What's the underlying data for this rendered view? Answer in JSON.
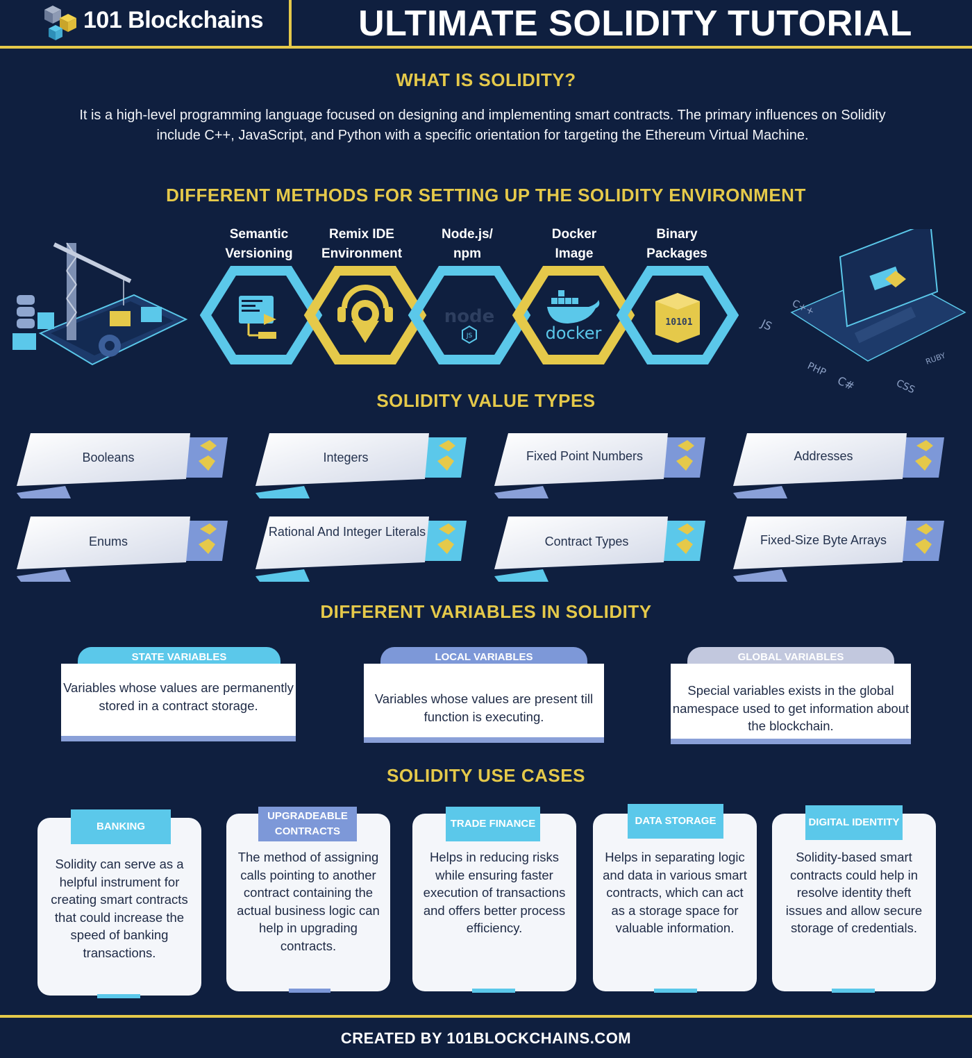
{
  "header": {
    "brand": "101 Blockchains",
    "title": "ULTIMATE SOLIDITY TUTORIAL"
  },
  "what_is": {
    "heading": "WHAT IS SOLIDITY?",
    "body": "It is a high-level programming language focused on designing and implementing smart contracts. The primary influences on Solidity include C++, JavaScript, and Python with a specific orientation for targeting the Ethereum Virtual Machine."
  },
  "methods": {
    "heading": "DIFFERENT METHODS FOR SETTING UP THE SOLIDITY ENVIRONMENT",
    "items": [
      {
        "line1": "Semantic",
        "line2": "Versioning"
      },
      {
        "line1": "Remix IDE",
        "line2": "Environment"
      },
      {
        "line1": "Node.js/",
        "line2": "npm"
      },
      {
        "line1": "Docker",
        "line2": "Image"
      },
      {
        "line1": "Binary",
        "line2": "Packages"
      }
    ],
    "icon_text": {
      "node": "node",
      "docker": "docker",
      "binary": "10101"
    }
  },
  "value_types": {
    "heading": "SOLIDITY VALUE TYPES",
    "items": [
      "Booleans",
      "Integers",
      "Fixed Point Numbers",
      "Addresses",
      "Enums",
      "Rational And Integer Literals",
      "Contract Types",
      "Fixed-Size Byte Arrays"
    ]
  },
  "variables": {
    "heading": "DIFFERENT VARIABLES IN SOLIDITY",
    "items": [
      {
        "label": "STATE VARIABLES",
        "desc": "Variables whose values are permanently stored in a contract storage."
      },
      {
        "label": "LOCAL VARIABLES",
        "desc": "Variables whose values are present till function is executing."
      },
      {
        "label": "GLOBAL VARIABLES",
        "desc": "Special variables exists in the global namespace used to get information about the blockchain."
      }
    ]
  },
  "use_cases": {
    "heading": "SOLIDITY USE CASES",
    "items": [
      {
        "label": "BANKING",
        "desc": "Solidity can serve as a helpful instrument for creating smart contracts that could increase the speed of banking transactions."
      },
      {
        "label": "UPGRADEABLE CONTRACTS",
        "desc": "The method of assigning calls pointing to another contract containing the actual business logic can help in upgrading contracts."
      },
      {
        "label": "TRADE FINANCE",
        "desc": "Helps in reducing risks while ensuring faster execution of transactions and offers better process efficiency."
      },
      {
        "label": "DATA STORAGE",
        "desc": "Helps in separating logic and data in various smart contracts, which can act as a storage space for valuable information."
      },
      {
        "label": "DIGITAL IDENTITY",
        "desc": "Solidity-based smart contracts could help in resolve identity theft issues and allow secure storage of credentials."
      }
    ]
  },
  "laptop_labels": [
    "C++",
    "JS",
    "PHP",
    "C#",
    "CSS",
    "RUBY"
  ],
  "footer": "CREATED BY 101BLOCKCHAINS.COM",
  "colors": {
    "navy": "#0f1f3f",
    "gold": "#e5c94a",
    "cyan": "#5bc8ea"
  }
}
